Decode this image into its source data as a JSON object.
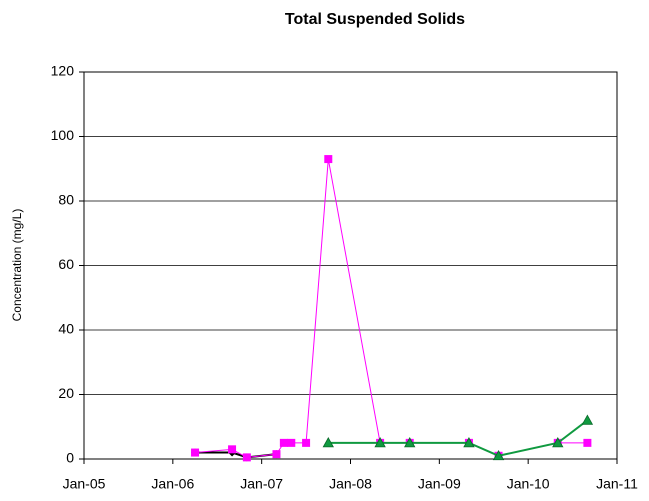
{
  "chart_data": {
    "type": "line",
    "title": "Total Suspended Solids",
    "y_label": "Concentration (mg/L)",
    "series": [
      {
        "color": "#000000",
        "marker": "diamond",
        "x": [
          "2006-04",
          "2006-09",
          "2006-11",
          "2007-03"
        ],
        "values": [
          2,
          2,
          0.5,
          1.5
        ]
      },
      {
        "color": "#ff00ff",
        "marker": "square",
        "x": [
          "2006-04",
          "2006-09",
          "2006-11",
          "2007-03",
          "2007-04",
          "2007-05",
          "2007-07",
          "2007-10",
          "2008-05",
          "2008-09",
          "2009-05",
          "2009-09",
          "2010-05",
          "2010-09"
        ],
        "values": [
          2,
          3,
          0.5,
          1.5,
          5,
          5,
          5,
          93,
          5,
          5,
          5,
          1,
          5,
          5
        ]
      },
      {
        "color": "#109a40",
        "marker": "triangle",
        "x": [
          "2007-10",
          "2008-05",
          "2008-09",
          "2009-05",
          "2009-09",
          "2010-05",
          "2010-09"
        ],
        "values": [
          5,
          5,
          5,
          5,
          1,
          5,
          12
        ]
      }
    ],
    "xlim": [
      "2005-01",
      "2011-01"
    ],
    "xticks": [
      {
        "value": "2005-01",
        "label": "Jan-05"
      },
      {
        "value": "2006-01",
        "label": "Jan-06"
      },
      {
        "value": "2007-01",
        "label": "Jan-07"
      },
      {
        "value": "2008-01",
        "label": "Jan-08"
      },
      {
        "value": "2009-01",
        "label": "Jan-09"
      },
      {
        "value": "2010-01",
        "label": "Jan-10"
      },
      {
        "value": "2011-01",
        "label": "Jan-11"
      }
    ],
    "ylim": [
      0,
      120
    ],
    "yticks": [
      0,
      20,
      40,
      60,
      80,
      100,
      120
    ],
    "grid": true
  }
}
